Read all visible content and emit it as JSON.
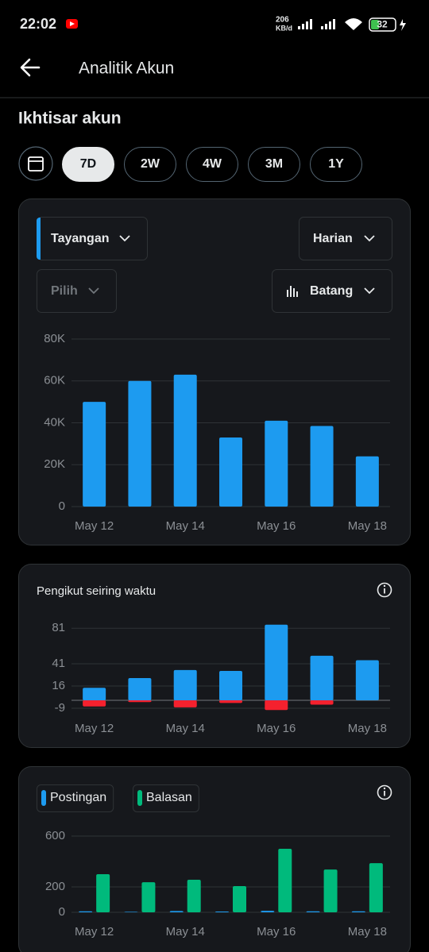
{
  "status_bar": {
    "time": "22:02",
    "network_speed": "206",
    "network_unit": "KB/d",
    "battery": "32"
  },
  "header": {
    "title": "Analitik Akun"
  },
  "section_title": "Ikhtisar akun",
  "ranges": {
    "options": [
      "7D",
      "2W",
      "4W",
      "3M",
      "1Y"
    ],
    "selected": "7D"
  },
  "controls": {
    "metric": "Tayangan",
    "interval": "Harian",
    "compare": "Pilih",
    "style": "Batang"
  },
  "chart_data": [
    {
      "type": "bar",
      "categories": [
        "May 12",
        null,
        "May 14",
        null,
        "May 16",
        null,
        "May 18"
      ],
      "values": [
        50000,
        60000,
        63000,
        33000,
        41000,
        38500,
        24000
      ],
      "color": "#1d9bf0",
      "ylim": [
        0,
        80000
      ],
      "yticks": [
        0,
        {
          "value": 20000,
          "label": "20K"
        },
        {
          "value": 40000,
          "label": "40K"
        },
        {
          "value": 60000,
          "label": "60K"
        },
        {
          "value": 80000,
          "label": "80K"
        }
      ],
      "grid": true
    },
    {
      "type": "bar",
      "title": "Pengikut seiring waktu",
      "stacked": true,
      "categories": [
        "May 12",
        null,
        "May 14",
        null,
        "May 16",
        null,
        "May 18"
      ],
      "series": [
        {
          "color": "#1d9bf0",
          "values": [
            14,
            25,
            34,
            33,
            85,
            50,
            45
          ]
        },
        {
          "color": "#f4212e",
          "values": [
            -7,
            -2,
            -8,
            -3,
            -11,
            -5,
            0
          ]
        }
      ],
      "ylim": [
        -12,
        86
      ],
      "yticks": [
        -9,
        16,
        41,
        81
      ],
      "grid": true
    },
    {
      "type": "bar",
      "stacked": false,
      "categories": [
        "May 12",
        null,
        "May 14",
        null,
        "May 16",
        null,
        "May 18"
      ],
      "series": [
        {
          "name": "Postingan",
          "color": "#1d9bf0",
          "values": [
            8,
            4,
            10,
            6,
            12,
            8,
            8
          ]
        },
        {
          "name": "Balasan",
          "color": "#00ba7c",
          "values": [
            300,
            237,
            256,
            206,
            500,
            337,
            387
          ]
        }
      ],
      "ylim": [
        0,
        600
      ],
      "yticks": [
        0,
        200,
        600
      ],
      "grid": true
    }
  ]
}
